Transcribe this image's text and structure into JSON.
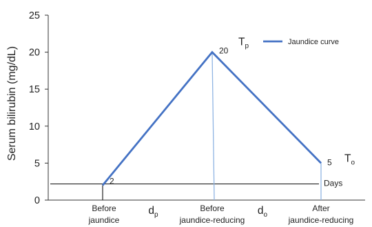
{
  "chart_data": {
    "type": "line",
    "ylabel": "Serum bilirubin (mg/dL)",
    "ylim": [
      0,
      25
    ],
    "yticks": [
      0,
      5,
      10,
      15,
      20,
      25
    ],
    "x_positions": [
      0,
      1,
      2
    ],
    "x_labels": [
      {
        "lines": [
          "Before",
          "jaundice"
        ]
      },
      {
        "lines": [
          "Before",
          "jaundice-reducing"
        ]
      },
      {
        "lines": [
          "After",
          "jaundice-reducing"
        ]
      }
    ],
    "interval_labels": [
      {
        "main": "d",
        "sub": "p"
      },
      {
        "main": "d",
        "sub": "o"
      }
    ],
    "series": [
      {
        "name": "Jaundice curve",
        "color": "#4472c4",
        "x": [
          0,
          1,
          2
        ],
        "y": [
          2,
          20,
          5
        ]
      }
    ],
    "data_labels": [
      "2",
      "20",
      "5"
    ],
    "point_labels": [
      {
        "main": "T",
        "sub": "p"
      },
      {
        "main": "T",
        "sub": "o"
      }
    ],
    "threshold": {
      "y": 2,
      "label": "Days",
      "color": "#222222"
    },
    "legend_position": "top-right",
    "grid": false
  }
}
